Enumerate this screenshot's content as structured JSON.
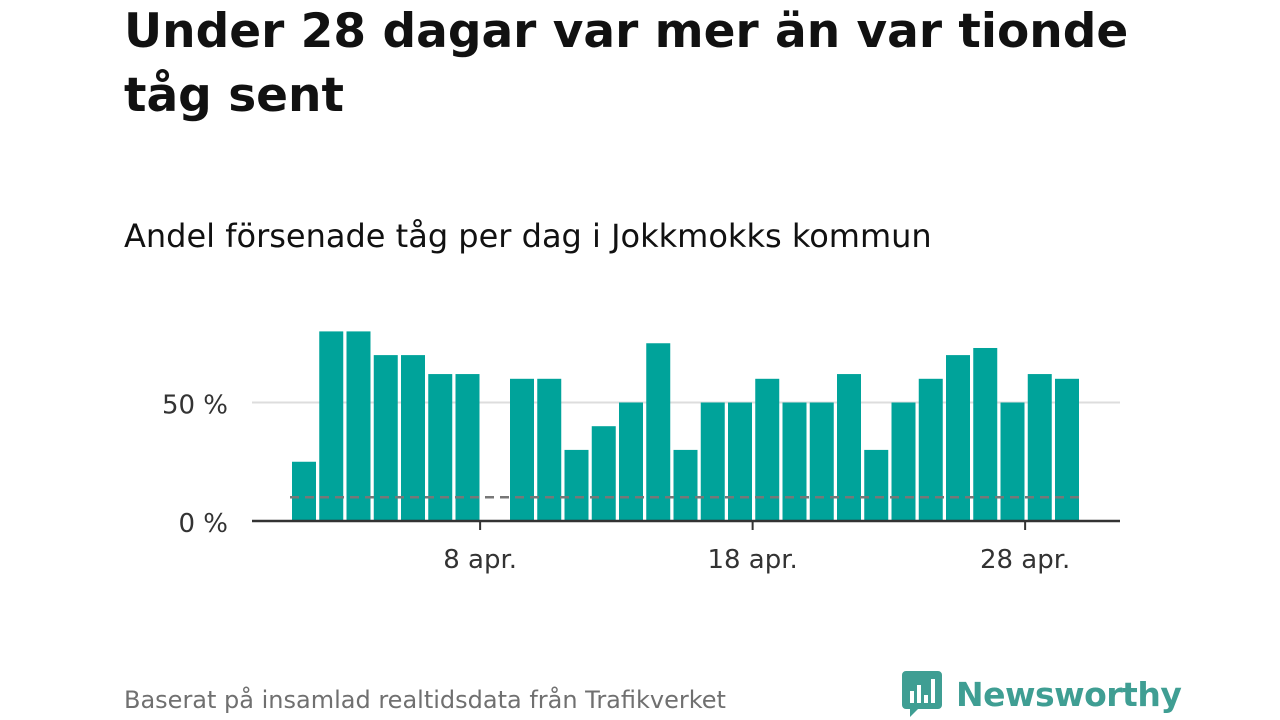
{
  "title": "Under 28 dagar var mer än var tionde tåg sent",
  "subtitle": "Andel försenade tåg per dag i Jokkmokks kommun",
  "source": "Baserat på insamlad realtidsdata från Trafikverket",
  "brand": {
    "name": "Newsworthy",
    "icon": "newsworthy-logo-icon",
    "color": "#3f9e93"
  },
  "colors": {
    "bar": "#00a39a",
    "reference_line": "#777777",
    "grid": "#dddddd",
    "axis": "#333333"
  },
  "chart_data": {
    "type": "bar",
    "x": [
      "1 apr.",
      "2 apr.",
      "3 apr.",
      "4 apr.",
      "5 apr.",
      "6 apr.",
      "7 apr.",
      "8 apr.",
      "9 apr.",
      "10 apr.",
      "11 apr.",
      "12 apr.",
      "13 apr.",
      "14 apr.",
      "15 apr.",
      "16 apr.",
      "17 apr.",
      "18 apr.",
      "19 apr.",
      "20 apr.",
      "21 apr.",
      "22 apr.",
      "23 apr.",
      "24 apr.",
      "25 apr.",
      "26 apr.",
      "27 apr.",
      "28 apr.",
      "29 apr."
    ],
    "values": [
      25,
      80,
      80,
      70,
      70,
      62,
      62,
      null,
      60,
      60,
      30,
      40,
      50,
      75,
      30,
      50,
      50,
      60,
      50,
      50,
      62,
      30,
      50,
      60,
      70,
      73,
      50,
      62,
      60
    ],
    "reference_line": 10,
    "xticks": [
      "8 apr.",
      "18 apr.",
      "28 apr."
    ],
    "yticks": [
      "0 %",
      "50 %"
    ],
    "ytick_values": [
      0,
      50
    ],
    "ylim": [
      0,
      85
    ],
    "grid": true
  }
}
